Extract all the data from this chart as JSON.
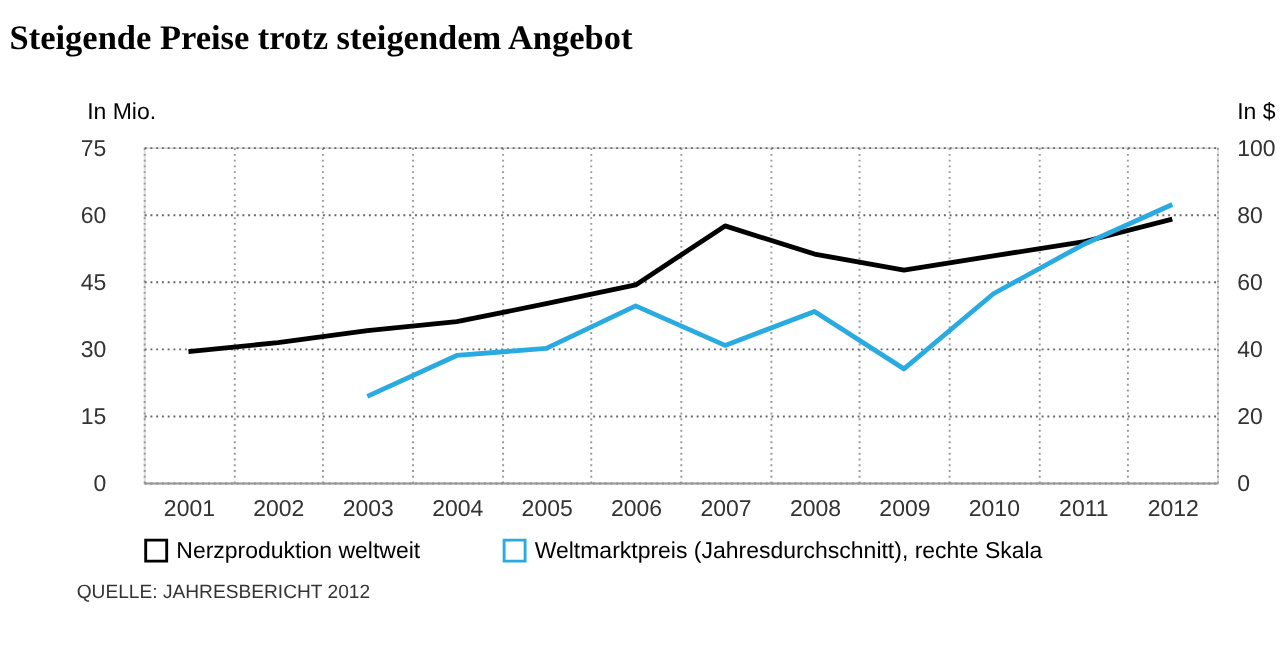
{
  "chart_data": {
    "type": "line",
    "title": "Steigende Preise trotz steigendem Angebot",
    "ylabel": "In Mio.",
    "y2label": "In $",
    "categories": [
      "2001",
      "2002",
      "2003",
      "2004",
      "2005",
      "2006",
      "2007",
      "2008",
      "2009",
      "2010",
      "2011",
      "2012"
    ],
    "series": [
      {
        "name": "Nerzproduktion weltweit",
        "color": "#000000",
        "values": [
          29.3,
          31.3,
          34,
          36,
          40,
          44.2,
          57.4,
          51.1,
          47.5,
          50.7,
          53.8,
          58.9
        ]
      },
      {
        "name": "Weltmarktpreis (Jahresdurchschnitt), rechte Skala",
        "color": "#29abe2",
        "axis": "y2",
        "values": [
          null,
          null,
          25.7,
          37.9,
          40,
          52.7,
          40.9,
          51,
          33.9,
          56.3,
          70.9,
          82.9
        ]
      }
    ],
    "ylim": [
      0,
      75
    ],
    "yticks": [
      0,
      15,
      30,
      45,
      60,
      75
    ],
    "y2lim": [
      0,
      100
    ],
    "y2ticks": [
      0,
      20,
      40,
      60,
      80,
      100
    ],
    "grid": true,
    "legend": "bottom left",
    "marker": "none",
    "line_style": "solid",
    "annotations": [
      "QUELLE: JAHRESBERICHT 2012"
    ]
  }
}
